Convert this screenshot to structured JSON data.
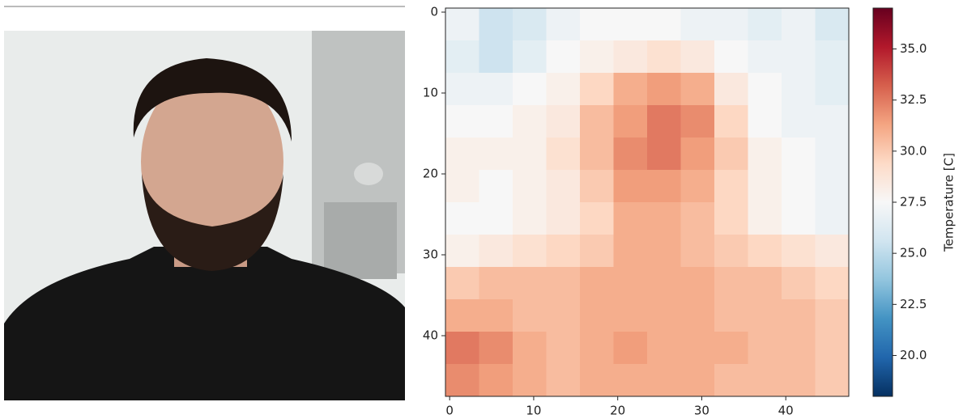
{
  "chart_data": {
    "type": "heatmap",
    "colormap": "RdBu_r",
    "clim": [
      18,
      37
    ],
    "xlim": [
      -0.5,
      47.5
    ],
    "ylim": [
      47.5,
      -0.5
    ],
    "xticks": [
      0,
      10,
      20,
      30,
      40
    ],
    "yticks": [
      0,
      10,
      20,
      30,
      40
    ],
    "colorbar_label": "Temperature [C]",
    "colorbar_ticks": [
      {
        "value": 20,
        "label": "20.0"
      },
      {
        "value": 22.5,
        "label": "22.5"
      },
      {
        "value": 25,
        "label": "25.0"
      },
      {
        "value": 27.5,
        "label": "27.5"
      },
      {
        "value": 30,
        "label": "30.0"
      },
      {
        "value": 32.5,
        "label": "32.5"
      },
      {
        "value": 35,
        "label": "35.0"
      }
    ],
    "values": [
      [
        27,
        25.5,
        26,
        27,
        27.5,
        27.5,
        27.5,
        27,
        27,
        26.5,
        27,
        26
      ],
      [
        26.5,
        25.5,
        26.5,
        27.5,
        28,
        28.5,
        29,
        28.5,
        27.5,
        27,
        27,
        26.5
      ],
      [
        27,
        27,
        27.5,
        28,
        29.5,
        31,
        31.5,
        31,
        28.5,
        27.5,
        27,
        26.5
      ],
      [
        27.5,
        27.5,
        28,
        28.5,
        30.5,
        31.5,
        32.5,
        32,
        29.5,
        27.5,
        27,
        27
      ],
      [
        28,
        28,
        28,
        29,
        30.5,
        32,
        32.5,
        31.5,
        30,
        28,
        27.5,
        27
      ],
      [
        28,
        27.5,
        28,
        28.5,
        30,
        31.5,
        31.5,
        31,
        29.5,
        28,
        27.5,
        27
      ],
      [
        27.5,
        27.5,
        28,
        28.5,
        29.5,
        31,
        31,
        30.5,
        29.5,
        28,
        27.5,
        27
      ],
      [
        28,
        28.5,
        29,
        29.5,
        30,
        31,
        31,
        30.5,
        30,
        29.5,
        29,
        28.5
      ],
      [
        30,
        30.5,
        30.5,
        30.5,
        31,
        31,
        31,
        31,
        30.5,
        30.5,
        30,
        29.5
      ],
      [
        31,
        31,
        30.5,
        30.5,
        31,
        31,
        31,
        31,
        30.5,
        30.5,
        30.5,
        30
      ],
      [
        32.5,
        32,
        31,
        30.5,
        31,
        31.5,
        31,
        31,
        31,
        30.5,
        30.5,
        30
      ],
      [
        32,
        31.5,
        31,
        30.5,
        31,
        31,
        31,
        31,
        30.5,
        30.5,
        30.5,
        30
      ]
    ]
  }
}
